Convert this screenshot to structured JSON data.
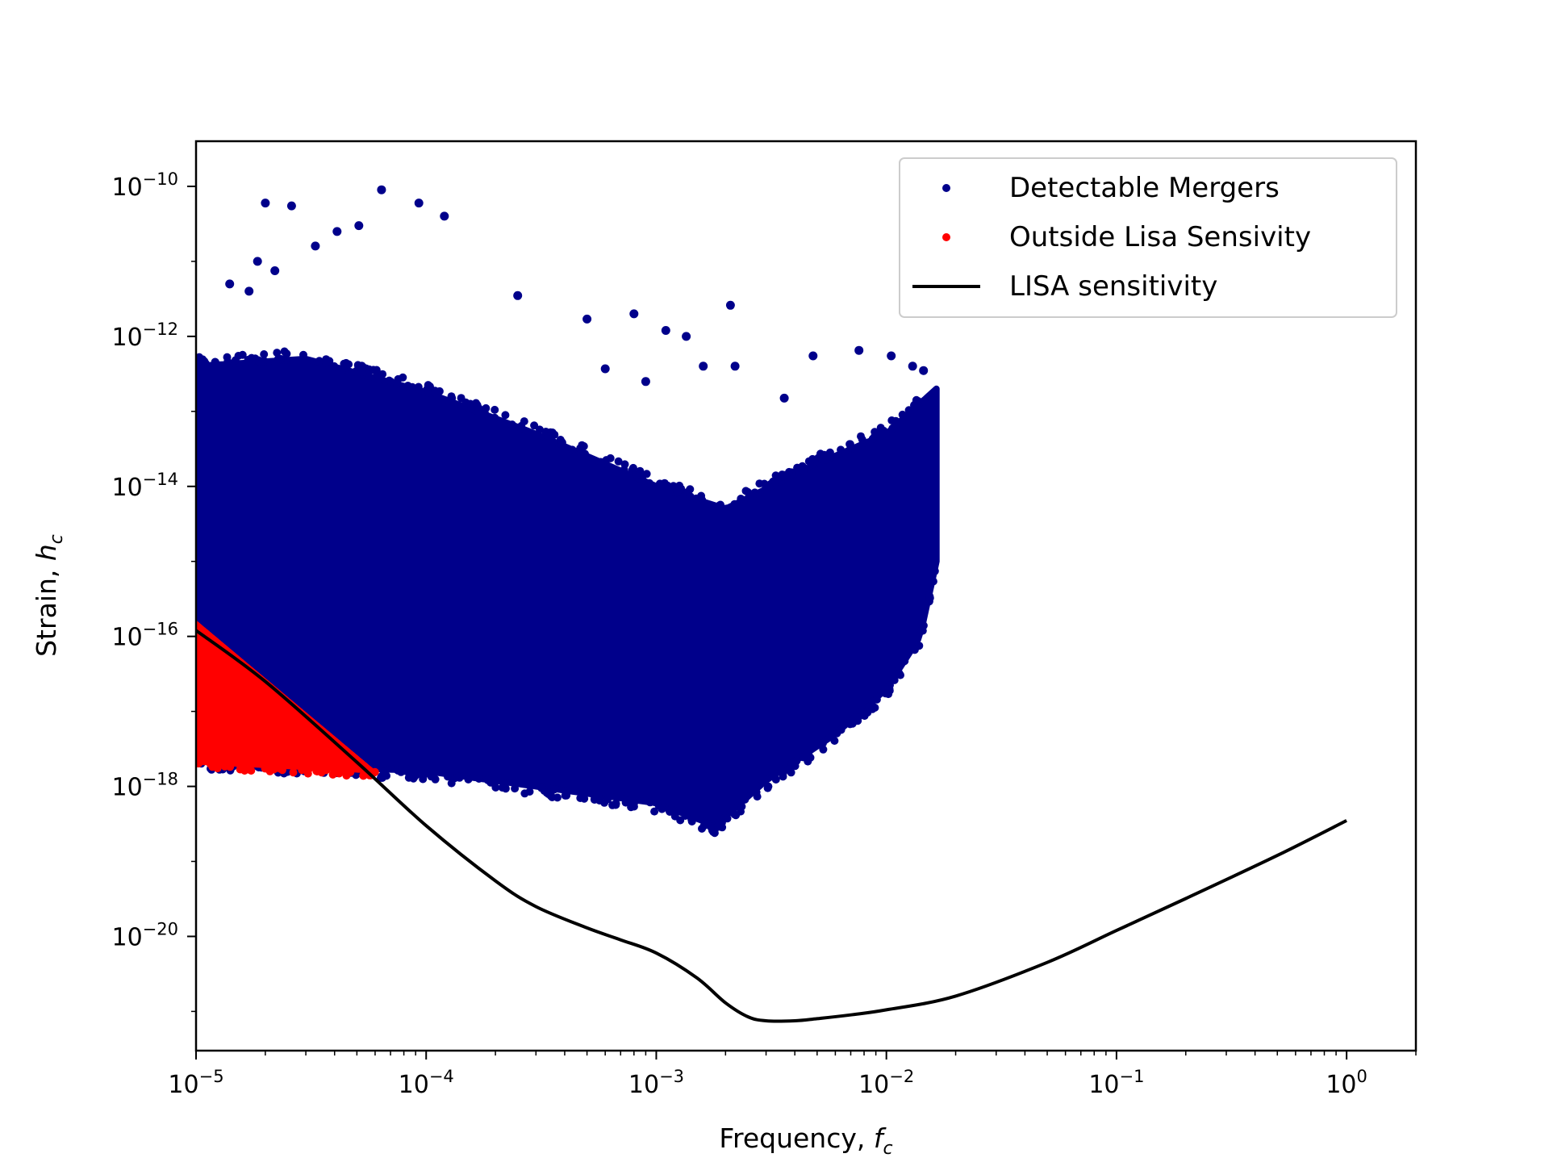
{
  "chart_data": {
    "type": "scatter",
    "title": "",
    "xlabel": "Frequency,",
    "xlabel_symbol": "f",
    "xlabel_sub": "c",
    "ylabel": "Strain,",
    "ylabel_symbol": "h",
    "ylabel_sub": "c",
    "x_scale": "log",
    "y_scale": "log",
    "xlim": [
      1e-05,
      2.0
    ],
    "ylim": [
      3e-22,
      4e-10
    ],
    "x_ticks": [
      {
        "value": 1e-05,
        "base": "10",
        "exp": "−5"
      },
      {
        "value": 0.0001,
        "base": "10",
        "exp": "−4"
      },
      {
        "value": 0.001,
        "base": "10",
        "exp": "−3"
      },
      {
        "value": 0.01,
        "base": "10",
        "exp": "−2"
      },
      {
        "value": 0.1,
        "base": "10",
        "exp": "−1"
      },
      {
        "value": 1,
        "base": "10",
        "exp": "0"
      }
    ],
    "y_ticks": [
      {
        "value": 1e-10,
        "base": "10",
        "exp": "−10"
      },
      {
        "value": 1e-12,
        "base": "10",
        "exp": "−12"
      },
      {
        "value": 1e-14,
        "base": "10",
        "exp": "−14"
      },
      {
        "value": 1e-16,
        "base": "10",
        "exp": "−16"
      },
      {
        "value": 1e-18,
        "base": "10",
        "exp": "−18"
      },
      {
        "value": 1e-20,
        "base": "10",
        "exp": "−20"
      }
    ],
    "grid": false,
    "legend_position": "top-right",
    "series": [
      {
        "name": "Detectable Mergers",
        "kind": "scatter",
        "color": "#00008b",
        "region_lower_envelope": [
          [
            1e-05,
            2.2e-18
          ],
          [
            0.0001,
            1.6e-18
          ],
          [
            0.001,
            6e-19
          ],
          [
            0.0018,
            3e-19
          ],
          [
            0.003,
            1.2e-18
          ],
          [
            0.006,
            5e-18
          ],
          [
            0.01,
            2e-17
          ],
          [
            0.014,
            1e-16
          ],
          [
            0.0165,
            1e-15
          ]
        ],
        "region_upper_envelope": [
          [
            1e-05,
            4e-13
          ],
          [
            3e-05,
            5e-13
          ],
          [
            0.0001,
            1.8e-13
          ],
          [
            0.0003,
            5e-14
          ],
          [
            0.001,
            1e-14
          ],
          [
            0.002,
            5e-15
          ],
          [
            0.005,
            2e-14
          ],
          [
            0.01,
            5e-14
          ],
          [
            0.0165,
            2e-13
          ]
        ],
        "outliers": [
          [
            2e-05,
            6e-11
          ],
          [
            2.6e-05,
            5.5e-11
          ],
          [
            6.4e-05,
            9e-11
          ],
          [
            9.3e-05,
            6e-11
          ],
          [
            0.00012,
            4e-11
          ],
          [
            5.1e-05,
            3e-11
          ],
          [
            4.1e-05,
            2.5e-11
          ],
          [
            1.85e-05,
            1e-11
          ],
          [
            3.3e-05,
            1.6e-11
          ],
          [
            2.2e-05,
            7.5e-12
          ],
          [
            1.4e-05,
            5e-12
          ],
          [
            1.7e-05,
            4e-12
          ],
          [
            0.00025,
            3.5e-12
          ],
          [
            0.0005,
            1.7e-12
          ],
          [
            0.0008,
            2e-12
          ],
          [
            0.0021,
            2.6e-12
          ],
          [
            0.0011,
            1.2e-12
          ],
          [
            0.00135,
            1e-12
          ],
          [
            0.0048,
            5.5e-13
          ],
          [
            0.0076,
            6.5e-13
          ],
          [
            0.0105,
            5.5e-13
          ],
          [
            0.013,
            4e-13
          ],
          [
            0.0016,
            4e-13
          ],
          [
            0.0022,
            4e-13
          ],
          [
            0.0145,
            3.5e-13
          ],
          [
            0.0006,
            3.7e-13
          ],
          [
            0.0009,
            2.5e-13
          ],
          [
            0.0036,
            1.5e-13
          ]
        ]
      },
      {
        "name": "Outside Lisa Sensivity",
        "kind": "scatter",
        "color": "#ff0000",
        "region_upper_envelope": [
          [
            1e-05,
            1.5e-16
          ],
          [
            6e-05,
            1.5e-18
          ]
        ],
        "region_lower_envelope": [
          [
            1e-05,
            2.1e-18
          ],
          [
            6e-05,
            1.6e-18
          ]
        ]
      },
      {
        "name": "LISA sensitivity",
        "kind": "line",
        "color": "#000000",
        "x": [
          1e-05,
          2e-05,
          5e-05,
          0.0001,
          0.0002,
          0.0003,
          0.0005,
          0.0007,
          0.001,
          0.0015,
          0.002,
          0.0025,
          0.003,
          0.004,
          0.005,
          0.007,
          0.01,
          0.02,
          0.05,
          0.1,
          0.2,
          0.5,
          1.0
        ],
        "y": [
          1.2e-16,
          2.5e-17,
          2.1e-18,
          3e-19,
          5.5e-20,
          2.5e-20,
          1.3e-20,
          9e-21,
          6e-21,
          2.8e-21,
          1.3e-21,
          8.5e-22,
          7.5e-22,
          7.5e-22,
          8e-22,
          9e-22,
          1.05e-21,
          1.6e-21,
          4.5e-21,
          1.2e-20,
          3.2e-20,
          1.2e-19,
          3.5e-19
        ]
      }
    ]
  }
}
